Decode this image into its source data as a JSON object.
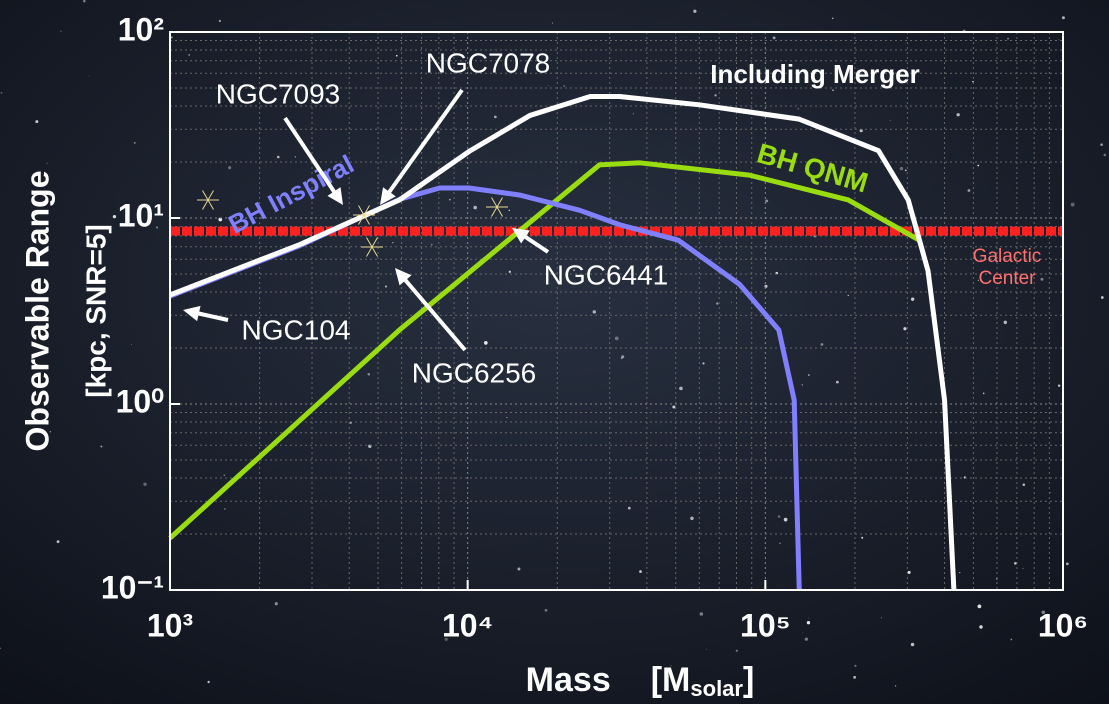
{
  "chart_data": {
    "type": "line",
    "xscale": "log",
    "yscale": "log",
    "xlim": [
      1000,
      1000000
    ],
    "ylim": [
      0.1,
      100
    ],
    "xticks": [
      {
        "value": 1000,
        "label": "10³"
      },
      {
        "value": 10000,
        "label": "10⁴"
      },
      {
        "value": 100000,
        "label": "10⁵"
      },
      {
        "value": 1000000,
        "label": "10⁶"
      }
    ],
    "yticks": [
      {
        "value": 0.1,
        "label": "10⁻¹"
      },
      {
        "value": 1,
        "label": "10⁰"
      },
      {
        "value": 10,
        "label": "10¹"
      },
      {
        "value": 100,
        "label": "10²"
      }
    ],
    "grid": true,
    "xlabel_parts": [
      "Mass",
      "[M",
      "solar",
      "]"
    ],
    "ylabel_lines": [
      "Observable Range",
      "[kpc, SNR=5]"
    ],
    "series": [
      {
        "name": "Including Merger",
        "color": "#ffffff",
        "x": [
          1000,
          2730,
          5900,
          10200,
          16200,
          25800,
          32400,
          60000,
          130000,
          240000,
          302000,
          352000,
          400000,
          430000
        ],
        "values": [
          3.86,
          7.2,
          12.5,
          23,
          35.6,
          45,
          45,
          40.6,
          34,
          23,
          12.5,
          5.2,
          1.05,
          0.1
        ]
      },
      {
        "name": "BH Inspiral",
        "color": "#8080ff",
        "x": [
          1000,
          2730,
          5900,
          8050,
          10100,
          14900,
          23800,
          32400,
          51000,
          81900,
          111000,
          125000,
          130000
        ],
        "values": [
          3.8,
          7.1,
          12.6,
          14.5,
          14.5,
          13.3,
          11,
          9.2,
          7.6,
          4.4,
          2.5,
          1.05,
          0.1
        ]
      },
      {
        "name": "BH QNM",
        "color": "#99dd11",
        "x": [
          1000,
          5900,
          27700,
          37800,
          88300,
          190000,
          329000
        ],
        "values": [
          0.19,
          2.5,
          19.3,
          19.8,
          17,
          12.5,
          7.6
        ]
      },
      {
        "name": "Galactic Center",
        "color": "#ff2020",
        "x": [
          1000,
          1000000
        ],
        "values": [
          8.5,
          8.5
        ]
      }
    ],
    "annotations": [
      "NGC7078",
      "NGC7093",
      "NGC104",
      "NGC6256",
      "NGC6441"
    ]
  }
}
